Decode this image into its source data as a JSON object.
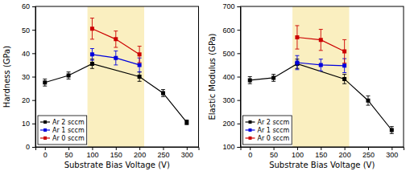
{
  "chart_data": [
    {
      "type": "line",
      "x_label": "Substrate Bias Voltage (V)",
      "y_label": "Hardness (GPa)",
      "xlim": [
        -20,
        325
      ],
      "xticks": [
        0,
        50,
        100,
        150,
        200,
        250,
        300
      ],
      "ylim": [
        0,
        60
      ],
      "yticks": [
        0,
        10,
        20,
        30,
        40,
        50,
        60
      ],
      "grid": false,
      "legend": "lower left",
      "marker": "square",
      "highlight": {
        "xmin": 90,
        "xmax": 210,
        "color": "#faefc0"
      },
      "series": [
        {
          "name": "Ar 2 sccm",
          "color": "#000000",
          "x": [
            0,
            50,
            100,
            200,
            250,
            300
          ],
          "values": [
            27.5,
            30.5,
            35.5,
            30.0,
            23.0,
            10.5
          ],
          "error": [
            1.5,
            1.5,
            2.0,
            2.0,
            1.5,
            1.0
          ]
        },
        {
          "name": "Ar 1 sccm",
          "color": "#0000dd",
          "x": [
            100,
            150,
            200
          ],
          "values": [
            39.5,
            38.0,
            35.0
          ],
          "error": [
            2.5,
            3.0,
            3.0
          ]
        },
        {
          "name": "Ar 0 sccm",
          "color": "#cc0000",
          "x": [
            100,
            150,
            200
          ],
          "values": [
            50.5,
            46.0,
            39.5
          ],
          "error": [
            4.5,
            3.5,
            3.5
          ]
        }
      ]
    },
    {
      "type": "line",
      "x_label": "Substrate Bias Voltage (V)",
      "y_label": "Elastic Modulus (GPa)",
      "xlim": [
        -20,
        325
      ],
      "xticks": [
        0,
        50,
        100,
        150,
        200,
        250,
        300
      ],
      "ylim": [
        100,
        700
      ],
      "yticks": [
        100,
        200,
        300,
        400,
        500,
        600,
        700
      ],
      "grid": false,
      "legend": "lower left",
      "marker": "square",
      "highlight": {
        "xmin": 90,
        "xmax": 210,
        "color": "#faefc0"
      },
      "series": [
        {
          "name": "Ar 2 sccm",
          "color": "#000000",
          "x": [
            0,
            50,
            100,
            200,
            250,
            300
          ],
          "values": [
            385,
            395,
            455,
            390,
            298,
            172
          ],
          "error": [
            15,
            15,
            20,
            20,
            20,
            15
          ]
        },
        {
          "name": "Ar 1 sccm",
          "color": "#0000dd",
          "x": [
            100,
            150,
            200
          ],
          "values": [
            460,
            450,
            447
          ],
          "error": [
            30,
            25,
            30
          ]
        },
        {
          "name": "Ar 0 sccm",
          "color": "#cc0000",
          "x": [
            100,
            150,
            200
          ],
          "values": [
            568,
            557,
            508
          ],
          "error": [
            50,
            45,
            50
          ]
        }
      ]
    }
  ]
}
